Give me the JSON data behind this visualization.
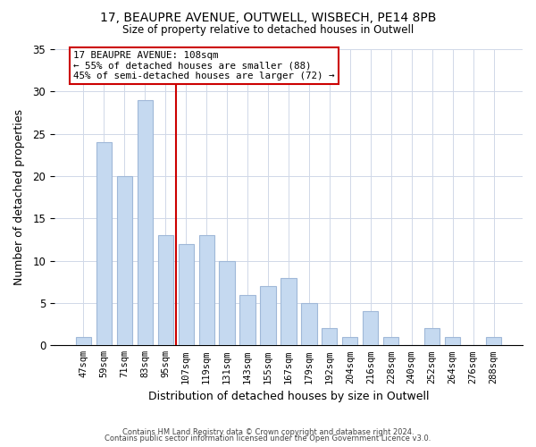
{
  "title1": "17, BEAUPRE AVENUE, OUTWELL, WISBECH, PE14 8PB",
  "title2": "Size of property relative to detached houses in Outwell",
  "xlabel": "Distribution of detached houses by size in Outwell",
  "ylabel": "Number of detached properties",
  "bar_labels": [
    "47sqm",
    "59sqm",
    "71sqm",
    "83sqm",
    "95sqm",
    "107sqm",
    "119sqm",
    "131sqm",
    "143sqm",
    "155sqm",
    "167sqm",
    "179sqm",
    "192sqm",
    "204sqm",
    "216sqm",
    "228sqm",
    "240sqm",
    "252sqm",
    "264sqm",
    "276sqm",
    "288sqm"
  ],
  "bar_values": [
    1,
    24,
    20,
    29,
    13,
    12,
    13,
    10,
    6,
    7,
    8,
    5,
    2,
    1,
    4,
    1,
    0,
    2,
    1,
    0,
    1
  ],
  "bar_color": "#c5d9f0",
  "bar_edgecolor": "#a0b8d8",
  "vline_color": "#cc0000",
  "annotation_title": "17 BEAUPRE AVENUE: 108sqm",
  "annotation_line1": "← 55% of detached houses are smaller (88)",
  "annotation_line2": "45% of semi-detached houses are larger (72) →",
  "annotation_box_facecolor": "#ffffff",
  "annotation_box_edgecolor": "#cc0000",
  "ylim": [
    0,
    35
  ],
  "yticks": [
    0,
    5,
    10,
    15,
    20,
    25,
    30,
    35
  ],
  "vline_bar_index": 5,
  "footer1": "Contains HM Land Registry data © Crown copyright and database right 2024.",
  "footer2": "Contains public sector information licensed under the Open Government Licence v3.0.",
  "figsize": [
    6.0,
    5.0
  ],
  "dpi": 100
}
